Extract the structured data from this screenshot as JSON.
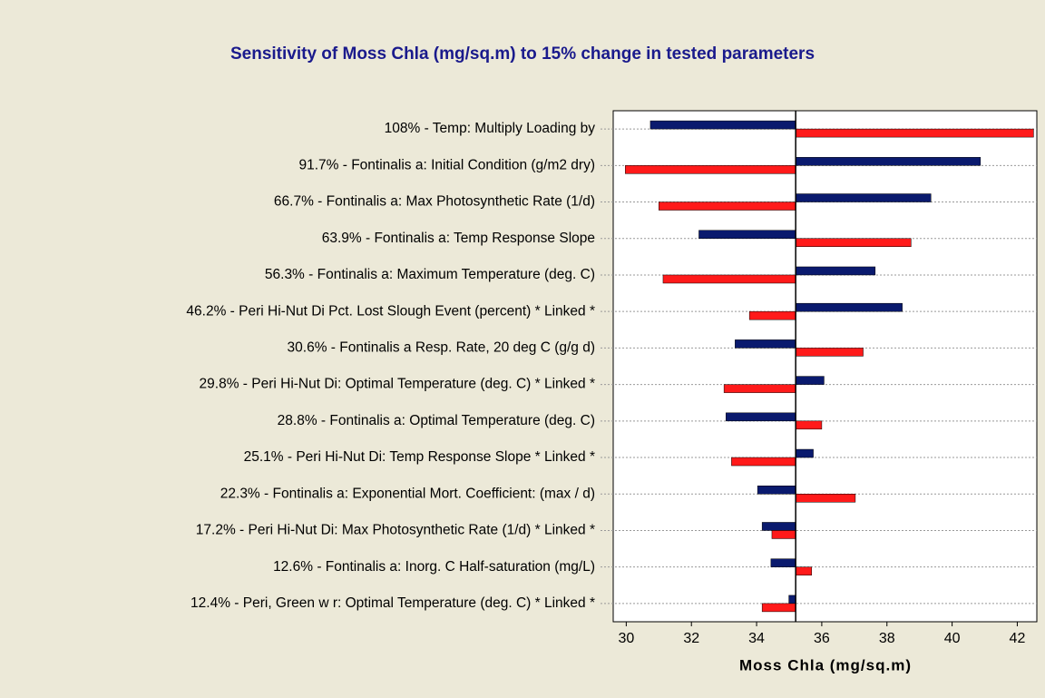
{
  "chart_data": {
    "type": "tornado",
    "title": "Sensitivity of Moss Chla (mg/sq.m) to 15% change in tested parameters",
    "x_label": "Moss Chla (mg/sq.m)",
    "categories": [
      "108% - Temp: Multiply Loading by",
      "91.7% - Fontinalis a: Initial Condition (g/m2 dry)",
      "66.7% - Fontinalis a: Max Photosynthetic Rate (1/d)",
      "63.9% - Fontinalis a: Temp Response Slope",
      "56.3% - Fontinalis a: Maximum Temperature (deg. C)",
      "46.2% - Peri Hi-Nut Di Pct. Lost Slough Event (percent)  * Linked *",
      "30.6% - Fontinalis a Resp. Rate, 20 deg C (g/g d)",
      "29.8% - Peri Hi-Nut Di: Optimal Temperature (deg. C) * Linked *",
      "28.8% - Fontinalis a: Optimal Temperature (deg. C)",
      "25.1% - Peri Hi-Nut Di: Temp Response Slope * Linked *",
      "22.3% - Fontinalis a: Exponential Mort. Coefficient: (max / d)",
      "17.2% - Peri Hi-Nut Di: Max Photosynthetic Rate (1/d) * Linked *",
      "12.6% - Fontinalis a: Inorg. C Half-saturation (mg/L)",
      "12.4% - Peri, Green w r: Optimal Temperature (deg. C) * Linked *"
    ],
    "base": 35.2,
    "series": [
      {
        "color": "#0a1a6e",
        "values": [
          30.74,
          40.87,
          39.35,
          32.23,
          37.64,
          38.47,
          33.34,
          36.07,
          33.06,
          35.74,
          34.03,
          34.17,
          34.44,
          34.99
        ]
      },
      {
        "color": "#ff1a1a",
        "values": [
          42.5,
          29.97,
          31.0,
          38.74,
          31.13,
          33.78,
          37.27,
          33.0,
          36.0,
          33.23,
          37.03,
          34.47,
          35.69,
          34.17
        ]
      }
    ],
    "xlim": [
      29.6,
      42.6
    ],
    "xticks": [
      30,
      32,
      34,
      36,
      38,
      40,
      42
    ]
  }
}
